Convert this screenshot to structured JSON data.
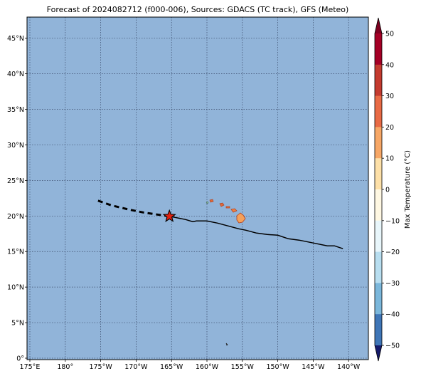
{
  "title": "Forecast of 2024082712 (f000-006), Sources: GDACS (TC track), GFS (Meteo)",
  "map": {
    "ocean_color": "#91b4d9",
    "grid": "dotted",
    "lon_ticks": [
      {
        "lon": 175,
        "label": "175°E"
      },
      {
        "lon": 180,
        "label": "180°"
      },
      {
        "lon": -175,
        "label": "175°W"
      },
      {
        "lon": -170,
        "label": "170°W"
      },
      {
        "lon": -165,
        "label": "165°W"
      },
      {
        "lon": -160,
        "label": "160°W"
      },
      {
        "lon": -155,
        "label": "155°W"
      },
      {
        "lon": -150,
        "label": "150°W"
      },
      {
        "lon": -145,
        "label": "145°W"
      },
      {
        "lon": -140,
        "label": "140°W"
      }
    ],
    "lat_ticks": [
      {
        "lat": 0,
        "label": "0°"
      },
      {
        "lat": 5,
        "label": "5°N"
      },
      {
        "lat": 10,
        "label": "10°N"
      },
      {
        "lat": 15,
        "label": "15°N"
      },
      {
        "lat": 20,
        "label": "20°N"
      },
      {
        "lat": 25,
        "label": "25°N"
      },
      {
        "lat": 30,
        "label": "30°N"
      },
      {
        "lat": 35,
        "label": "35°N"
      },
      {
        "lat": 40,
        "label": "40°N"
      },
      {
        "lat": 45,
        "label": "45°N"
      }
    ],
    "track_past": [
      [
        -140.8,
        15.4
      ],
      [
        -142,
        15.8
      ],
      [
        -143,
        15.8
      ],
      [
        -145,
        16.2
      ],
      [
        -147,
        16.6
      ],
      [
        -148.5,
        16.8
      ],
      [
        -150,
        17.3
      ],
      [
        -151.5,
        17.4
      ],
      [
        -153,
        17.6
      ],
      [
        -154.5,
        18.0
      ],
      [
        -155.5,
        18.2
      ],
      [
        -157,
        18.6
      ],
      [
        -158.5,
        19.0
      ],
      [
        -160,
        19.3
      ],
      [
        -161.5,
        19.3
      ],
      [
        -162,
        19.2
      ],
      [
        -163,
        19.5
      ],
      [
        -164.5,
        19.8
      ],
      [
        -165.3,
        19.95
      ]
    ],
    "track_forecast": [
      [
        -165.3,
        19.95
      ],
      [
        -167,
        20.2
      ],
      [
        -169,
        20.5
      ],
      [
        -171,
        20.9
      ],
      [
        -173.5,
        21.5
      ],
      [
        -175.8,
        22.3
      ]
    ],
    "storm_position": {
      "lon": -165.3,
      "lat": 19.95
    },
    "track_color": "#000000",
    "storm_marker_color": "#e02010"
  },
  "colorbar": {
    "label": "Max Temperature (°C)",
    "ticks": [
      "50",
      "40",
      "30",
      "20",
      "10",
      "0",
      "−10",
      "−20",
      "−30",
      "−40",
      "−50"
    ],
    "colors": [
      "#b2182b",
      "#d6604d",
      "#f4a582",
      "#fddbc7",
      "#fff7dc",
      "#e6f5fa",
      "#c3e4ef",
      "#92c5de",
      "#4393c3",
      "#2166ac",
      "#2d3a8c",
      "#67001f"
    ]
  }
}
